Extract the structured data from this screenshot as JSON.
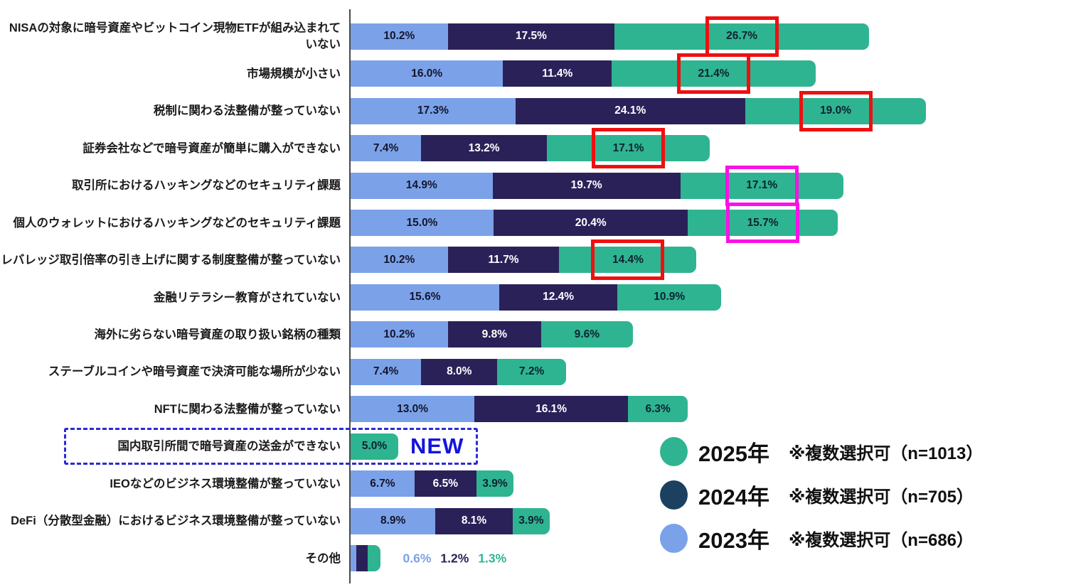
{
  "chart_data": {
    "type": "bar",
    "orientation": "horizontal-stacked",
    "value_suffix": "%",
    "grid": false,
    "legend_position": "bottom-right",
    "xlim": [
      0,
      75
    ],
    "categories": [
      "NISAの対象に暗号資産やビットコイン現物ETFが組み込まれていない",
      "市場規模が小さい",
      "税制に関わる法整備が整っていない",
      "証券会社などで暗号資産が簡単に購入ができない",
      "取引所におけるハッキングなどのセキュリティ課題",
      "個人のウォレットにおけるハッキングなどのセキュリティ課題",
      "レバレッジ取引倍率の引き上げに関する制度整備が整っていない",
      "金融リテラシー教育がされていない",
      "海外に劣らない暗号資産の取り扱い銘柄の種類",
      "ステーブルコインや暗号資産で決済可能な場所が少ない",
      "NFTに関わる法整備が整っていない",
      "国内取引所間で暗号資産の送金ができない",
      "IEOなどのビジネス環境整備が整っていない",
      "DeFi（分散型金融）におけるビジネス環境整備が整っていない",
      "その他"
    ],
    "series": [
      {
        "name": "2023年",
        "color": "#7ba2e8",
        "label_color": "#14142e",
        "values": [
          10.2,
          16.0,
          17.3,
          7.4,
          14.9,
          15.0,
          10.2,
          15.6,
          10.2,
          7.4,
          13.0,
          null,
          6.7,
          8.9,
          0.6
        ]
      },
      {
        "name": "2024年",
        "color": "#2b2159",
        "label_color": "#ffffff",
        "values": [
          17.5,
          11.4,
          24.1,
          13.2,
          19.7,
          20.4,
          11.7,
          12.4,
          9.8,
          8.0,
          16.1,
          null,
          6.5,
          8.1,
          1.2
        ]
      },
      {
        "name": "2025年",
        "color": "#2fb491",
        "label_color": "#0d2230",
        "values": [
          26.7,
          21.4,
          19.0,
          17.1,
          17.1,
          15.7,
          14.4,
          10.9,
          9.6,
          7.2,
          6.3,
          5.0,
          3.9,
          3.9,
          1.3
        ]
      }
    ],
    "highlights": [
      {
        "row": 0,
        "series": "2025年",
        "color": "red"
      },
      {
        "row": 1,
        "series": "2025年",
        "color": "red"
      },
      {
        "row": 2,
        "series": "2025年",
        "color": "red"
      },
      {
        "row": 3,
        "series": "2025年",
        "color": "red"
      },
      {
        "row": 4,
        "series": "2025年",
        "color": "magenta"
      },
      {
        "row": 5,
        "series": "2025年",
        "color": "magenta"
      },
      {
        "row": 6,
        "series": "2025年",
        "color": "red"
      }
    ],
    "new_badge": {
      "row": 11,
      "label": "NEW"
    },
    "labels_outside_row": 14
  },
  "legend": {
    "items": [
      {
        "year": "2025年",
        "note": "※複数選択可（n=1013）",
        "color": "#2fb491"
      },
      {
        "year": "2024年",
        "note": "※複数選択可（n=705）",
        "color": "#1b4060"
      },
      {
        "year": "2023年",
        "note": "※複数選択可（n=686）",
        "color": "#7ba2e8"
      }
    ]
  },
  "colors": {
    "red_box": "#ee1010",
    "magenta_box": "#f912e6",
    "new_text": "#1414dd",
    "dashed_border": "#2b2bd6",
    "axis": "#4a4a4a"
  }
}
